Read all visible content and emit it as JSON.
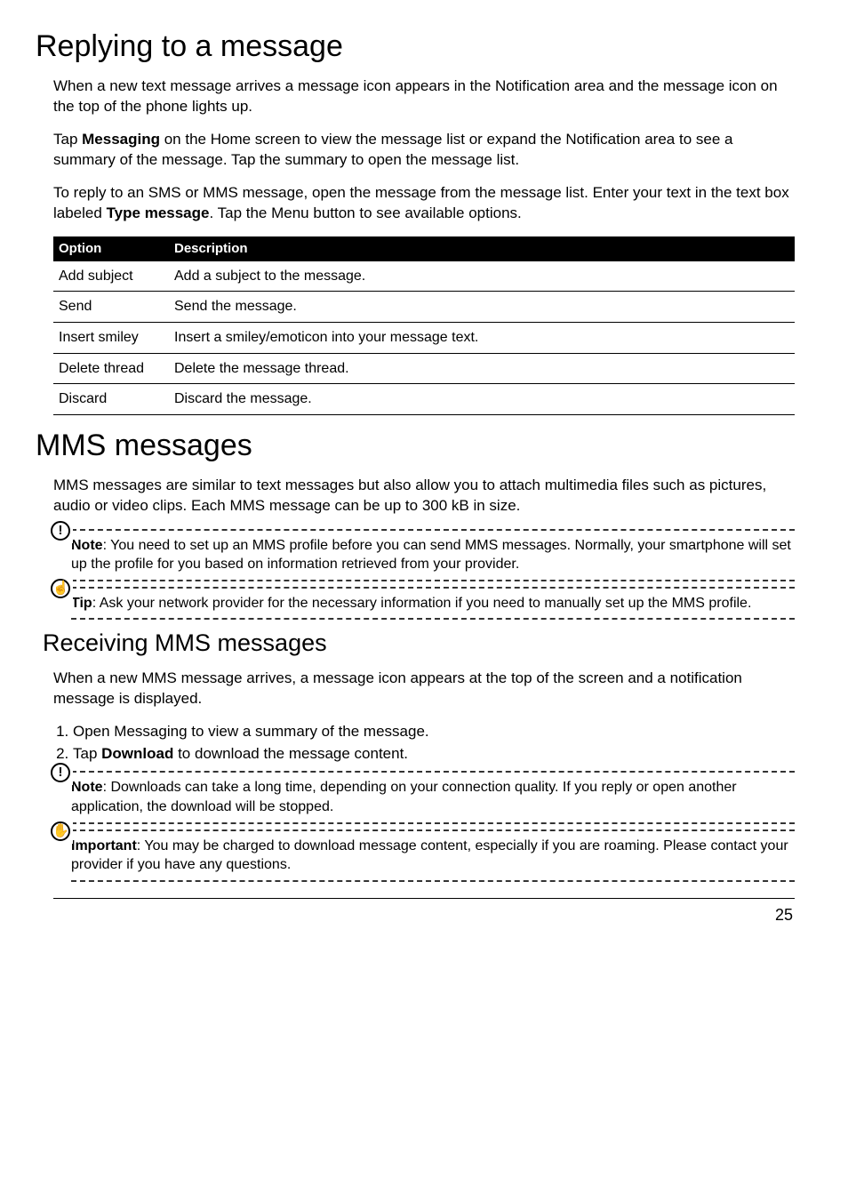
{
  "section1": {
    "heading": "Replying to a message",
    "para1": "When a new text message arrives a message icon appears in the Notification area and the message icon on the top of the phone lights up.",
    "para2_pre": "Tap ",
    "para2_bold": "Messaging",
    "para2_post": " on the Home screen to view the message list or expand the Notification area to see a summary of the message. Tap the summary to open the message list.",
    "para3_pre": "To reply to an SMS or MMS message, open the message from the message list. Enter your text in the text box labeled ",
    "para3_bold": "Type message",
    "para3_post": ". Tap the Menu button to see available options.",
    "table": {
      "headers": [
        "Option",
        "Description"
      ],
      "rows": [
        [
          "Add subject",
          "Add a subject to the message."
        ],
        [
          "Send",
          "Send the message."
        ],
        [
          "Insert smiley",
          "Insert a smiley/emoticon into your message text."
        ],
        [
          "Delete thread",
          "Delete the message thread."
        ],
        [
          "Discard",
          "Discard the message."
        ]
      ]
    }
  },
  "section2": {
    "heading": "MMS messages",
    "para1": "MMS messages are similar to text messages but also allow you to attach multimedia files such as pictures, audio or video clips. Each MMS message can be up to 300 kB in size.",
    "note1": {
      "icon_glyph": "!",
      "label": "Note",
      "text": ": You need to set up an MMS profile before you can send MMS messages. Normally, your smartphone will set up the profile for you based on information retrieved from your provider."
    },
    "tip1": {
      "icon_glyph": "☝",
      "label": "Tip",
      "text": ": Ask your network provider for the necessary information if you need to manually set up the MMS profile."
    },
    "subheading": "Receiving MMS messages",
    "para2": "When a new MMS message arrives, a message icon appears at the top of the screen and a notification message is displayed.",
    "step1": "Open Messaging to view a summary of the message.",
    "step2_pre": "Tap ",
    "step2_bold": "Download",
    "step2_post": " to download the message content.",
    "note2": {
      "icon_glyph": "!",
      "label": "Note",
      "text": ": Downloads can take a long time, depending on your connection quality. If you reply or open another application, the download will be stopped."
    },
    "important": {
      "icon_glyph": "✋",
      "label": "Important",
      "text": ": You may be charged to download message content, especially if you are roaming. Please contact your provider if you have any questions."
    }
  },
  "page_number": "25"
}
